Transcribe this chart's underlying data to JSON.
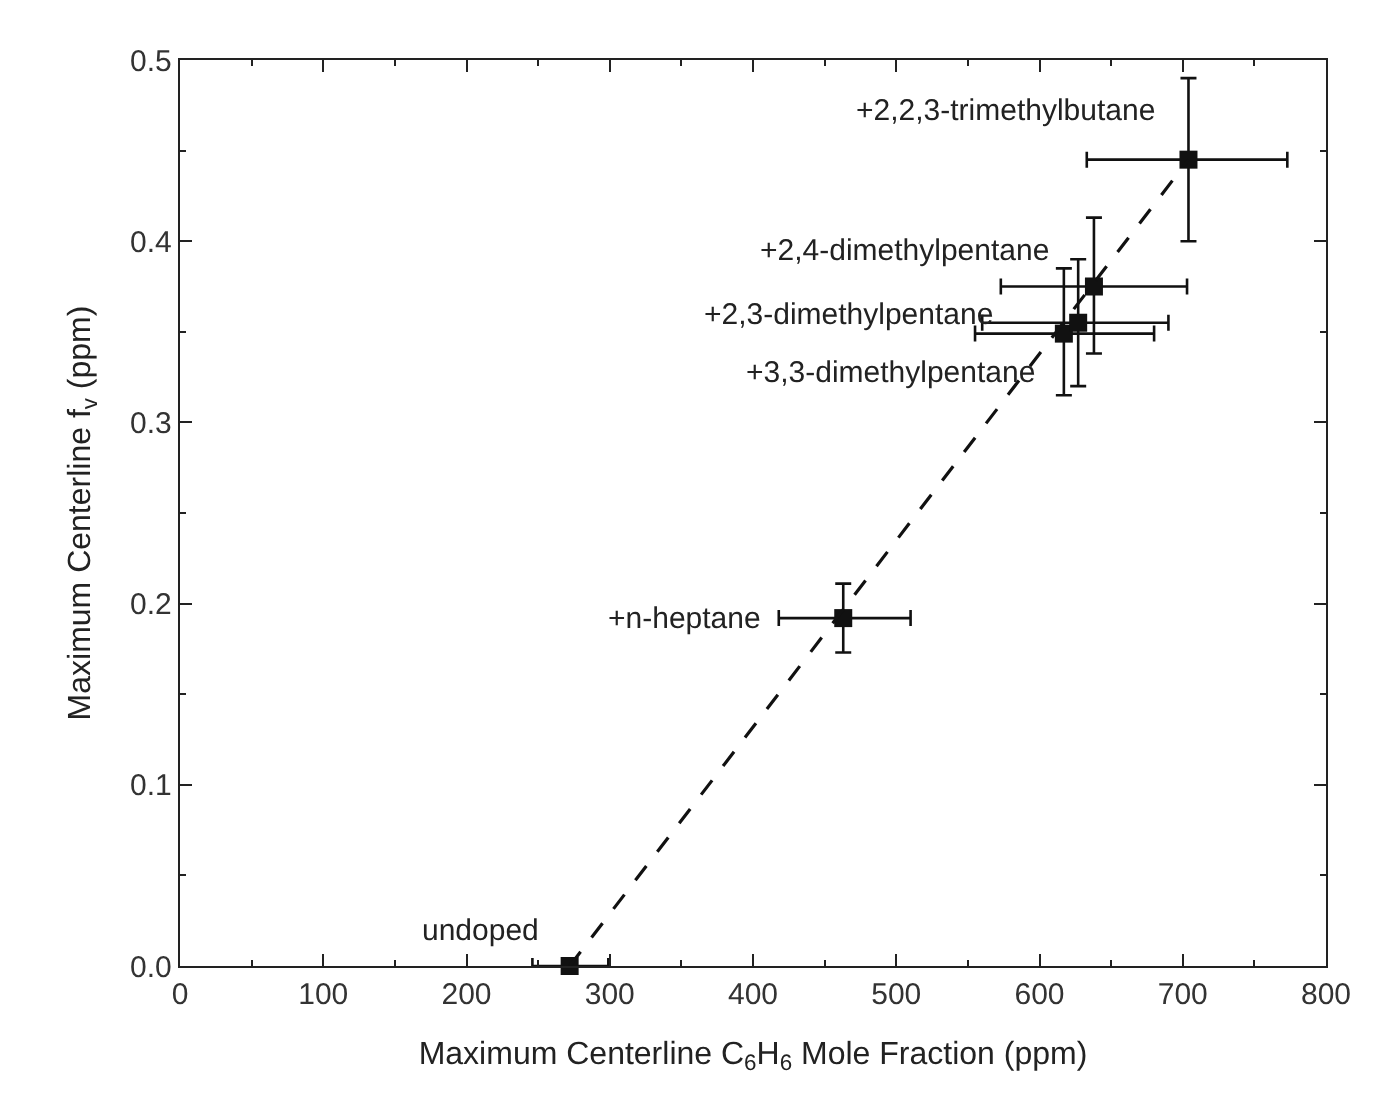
{
  "chart_data": {
    "type": "scatter",
    "xlabel": "Maximum Centerline C$_{6}$H$_{6}$ Mole Fraction (ppm)",
    "ylabel": "Maximum Centerline f$_{v}$ (ppm)",
    "xlim": [
      0,
      800
    ],
    "xticks": [
      0,
      100,
      200,
      300,
      400,
      500,
      600,
      700,
      800
    ],
    "ylim": [
      0,
      0.5
    ],
    "yticks": [
      {
        "value": 0,
        "label": "0.0"
      },
      {
        "value": 0.1,
        "label": "0.1"
      },
      {
        "value": 0.2,
        "label": "0.2"
      },
      {
        "value": 0.3,
        "label": "0.3"
      },
      {
        "value": 0.4,
        "label": "0.4"
      },
      {
        "value": 0.5,
        "label": "0.5"
      }
    ],
    "marker": "square",
    "series": [
      {
        "color": "#111111",
        "x": [
          272,
          463,
          617,
          627,
          638,
          704
        ],
        "values": [
          0,
          0.192,
          0.349,
          0.355,
          0.375,
          0.445
        ],
        "xerrors": [
          [
            246,
            299
          ],
          [
            418,
            510
          ],
          [
            555,
            680
          ],
          [
            560,
            690
          ],
          [
            573,
            703
          ],
          [
            633,
            773
          ]
        ],
        "errors": [
          null,
          [
            0.173,
            0.211
          ],
          [
            0.315,
            0.385
          ],
          [
            0.32,
            0.39
          ],
          [
            0.338,
            0.413
          ],
          [
            0.4,
            0.49
          ]
        ]
      },
      {
        "type": "line",
        "color": "#111111",
        "line_style": "dashed",
        "marker": "none",
        "x": [
          272,
          704
        ],
        "values": [
          0,
          0.445
        ]
      }
    ],
    "annotations": [
      {
        "text": "undoped",
        "x": 272,
        "y": 0
      },
      {
        "text": "+n-heptane",
        "x": 463,
        "y": 0.192
      },
      {
        "text": "+3,3-dimethylpentane",
        "x": 617,
        "y": 0.349
      },
      {
        "text": "+2,3-dimethylpentane",
        "x": 627,
        "y": 0.355
      },
      {
        "text": "+2,4-dimethylpentane",
        "x": 638,
        "y": 0.375
      },
      {
        "text": "+2,2,3-trimethylbutane",
        "x": 704,
        "y": 0.445
      }
    ]
  }
}
